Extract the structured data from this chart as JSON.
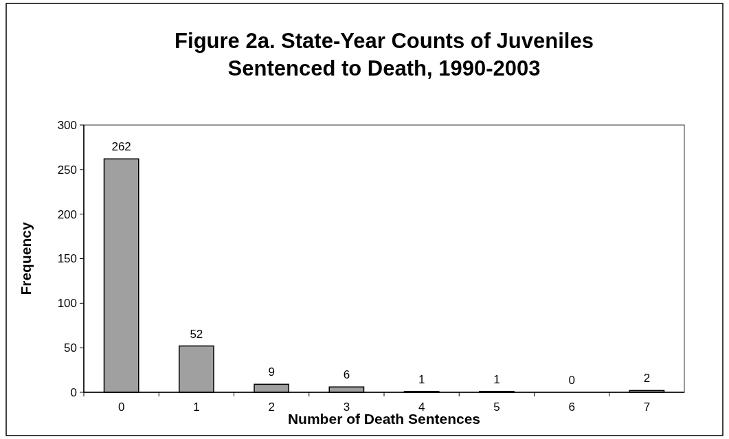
{
  "chart_data": {
    "type": "bar",
    "title": "Figure 2a.  State-Year Counts of Juveniles\nSentenced to Death, 1990-2003",
    "xlabel": "Number of Death Sentences",
    "ylabel": "Frequency",
    "categories": [
      "0",
      "1",
      "2",
      "3",
      "4",
      "5",
      "6",
      "7"
    ],
    "values": [
      262,
      52,
      9,
      6,
      1,
      1,
      0,
      2
    ],
    "color": "#a0a0a0",
    "ylim": [
      0,
      300
    ],
    "yticks": [
      0,
      50,
      100,
      150,
      200,
      250,
      300
    ],
    "data_labels": true,
    "grid": false
  }
}
